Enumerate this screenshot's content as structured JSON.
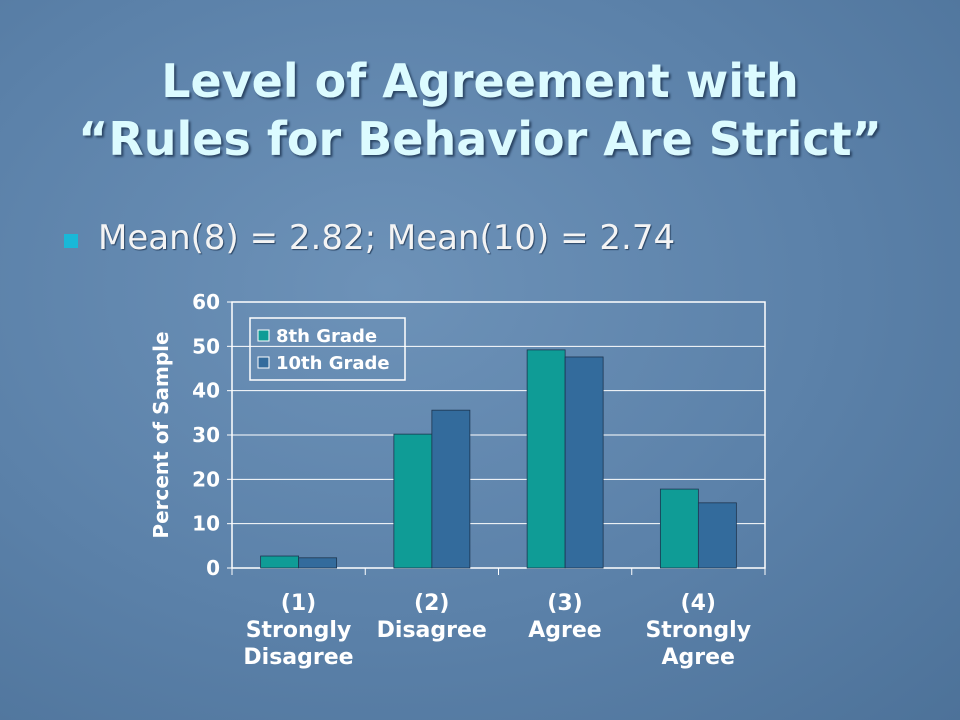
{
  "slide": {
    "title": "Level of Agreement with\n“Rules for Behavior Are Strict”",
    "bullet": "Mean(8) = 2.82; Mean(10) = 2.74"
  },
  "chart_data": {
    "type": "bar",
    "y_label": "Percent of Sample",
    "categories": [
      "(1)\nStrongly\nDisagree",
      "(2)\nDisagree",
      "(3)\nAgree",
      "(4)\nStrongly\nAgree"
    ],
    "series": [
      {
        "name": "8th Grade",
        "color": "#0f9c96",
        "values": [
          2.7,
          30.2,
          49.2,
          17.8
        ]
      },
      {
        "name": "10th Grade",
        "color": "#336b9c",
        "values": [
          2.3,
          35.6,
          47.6,
          14.7
        ]
      }
    ],
    "ylim": [
      0,
      60
    ],
    "yticks": [
      0,
      10,
      20,
      30,
      40,
      50,
      60
    ],
    "grid": true,
    "legend": "top-left"
  }
}
